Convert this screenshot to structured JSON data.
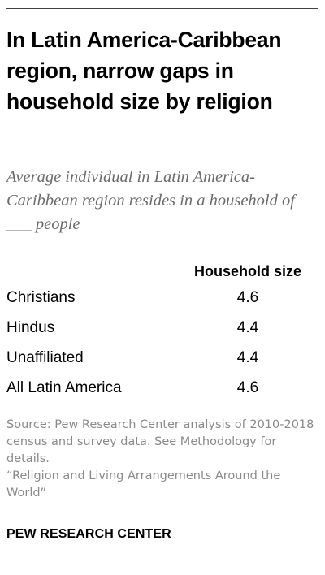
{
  "title": "In Latin America-Caribbean region, narrow gaps in household size by religion",
  "subtitle": "Average individual in Latin America-Caribbean region resides in a household of ___ people",
  "chart_data": {
    "type": "table",
    "column_header": "Household size",
    "rows": [
      {
        "label": "Christians",
        "value": "4.6"
      },
      {
        "label": "Hindus",
        "value": "4.4"
      },
      {
        "label": "Unaffiliated",
        "value": "4.4"
      },
      {
        "label": "All Latin America",
        "value": "4.6"
      }
    ]
  },
  "source_lines": [
    "Source: Pew Research Center analysis of 2010-2018 census and survey data. See Methodology for details.",
    "“Religion and Living Arrangements Around the World”"
  ],
  "brand": "PEW RESEARCH CENTER",
  "colors": {
    "title": "#000000",
    "subtitle": "#6b6b6b",
    "source": "#8a8a8a",
    "rule": "#444444"
  }
}
